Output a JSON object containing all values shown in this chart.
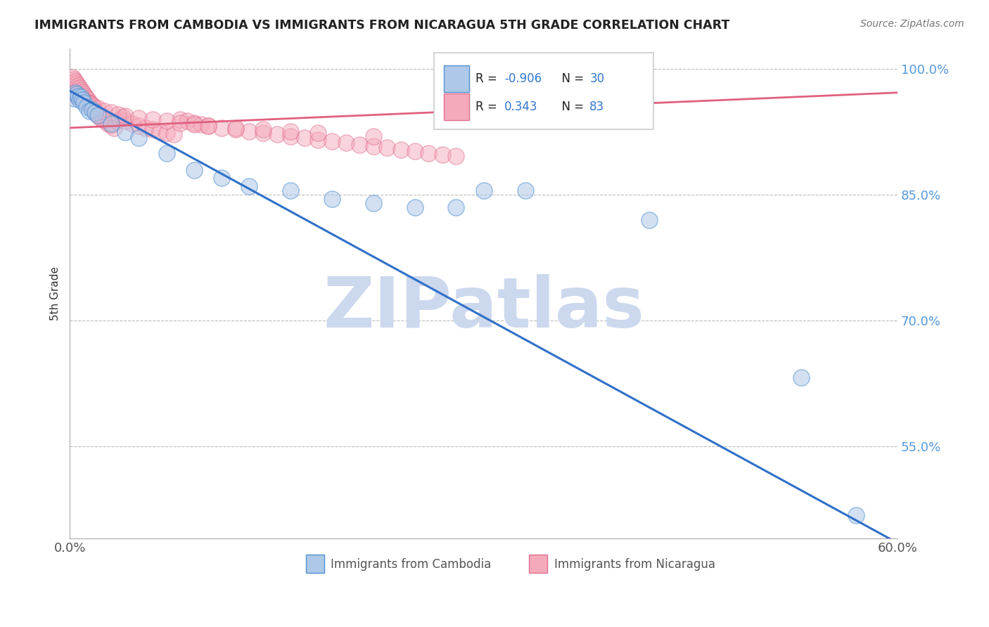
{
  "title": "IMMIGRANTS FROM CAMBODIA VS IMMIGRANTS FROM NICARAGUA 5TH GRADE CORRELATION CHART",
  "source_text": "Source: ZipAtlas.com",
  "ylabel": "5th Grade",
  "xlim": [
    0.0,
    0.6
  ],
  "ylim": [
    0.44,
    1.025
  ],
  "xtick_positions": [
    0.0,
    0.6
  ],
  "xtick_labels": [
    "0.0%",
    "60.0%"
  ],
  "ytick_positions": [
    0.55,
    0.7,
    0.85,
    1.0
  ],
  "ytick_labels": [
    "55.0%",
    "70.0%",
    "85.0%",
    "100.0%"
  ],
  "R_cambodia": -0.906,
  "N_cambodia": 30,
  "R_nicaragua": 0.343,
  "N_nicaragua": 83,
  "cambodia_fill_color": "#aec8e8",
  "nicaragua_fill_color": "#f5aabb",
  "cambodia_edge_color": "#5090d0",
  "nicaragua_edge_color": "#e07090",
  "cambodia_line_color": "#3070c8",
  "nicaragua_line_color": "#e06080",
  "watermark": "ZIPatlas",
  "watermark_color": "#ccd8ee",
  "background_color": "#ffffff",
  "cam_line_x0": 0.0,
  "cam_line_y0": 0.974,
  "cam_line_x1": 0.6,
  "cam_line_y1": 0.435,
  "nic_line_x0": 0.0,
  "nic_line_y0": 0.93,
  "nic_line_x1": 0.6,
  "nic_line_y1": 0.972,
  "cambodia_x": [
    0.003,
    0.004,
    0.005,
    0.006,
    0.007,
    0.008,
    0.009,
    0.01,
    0.012,
    0.014,
    0.016,
    0.018,
    0.02,
    0.03,
    0.04,
    0.05,
    0.07,
    0.09,
    0.11,
    0.13,
    0.16,
    0.19,
    0.22,
    0.25,
    0.28,
    0.3,
    0.33,
    0.42,
    0.53,
    0.57
  ],
  "cambodia_y": [
    0.965,
    0.972,
    0.97,
    0.968,
    0.963,
    0.967,
    0.963,
    0.96,
    0.955,
    0.95,
    0.952,
    0.948,
    0.945,
    0.935,
    0.925,
    0.918,
    0.9,
    0.88,
    0.87,
    0.86,
    0.855,
    0.845,
    0.84,
    0.835,
    0.835,
    0.855,
    0.855,
    0.82,
    0.632,
    0.468
  ],
  "nicaragua_x": [
    0.002,
    0.003,
    0.004,
    0.005,
    0.006,
    0.007,
    0.008,
    0.009,
    0.01,
    0.011,
    0.012,
    0.013,
    0.014,
    0.015,
    0.016,
    0.017,
    0.018,
    0.019,
    0.02,
    0.022,
    0.024,
    0.026,
    0.028,
    0.03,
    0.032,
    0.034,
    0.036,
    0.038,
    0.04,
    0.045,
    0.05,
    0.055,
    0.06,
    0.065,
    0.07,
    0.075,
    0.08,
    0.085,
    0.09,
    0.095,
    0.1,
    0.11,
    0.12,
    0.13,
    0.14,
    0.15,
    0.16,
    0.17,
    0.18,
    0.19,
    0.2,
    0.21,
    0.22,
    0.23,
    0.24,
    0.25,
    0.26,
    0.27,
    0.28,
    0.003,
    0.005,
    0.007,
    0.009,
    0.011,
    0.013,
    0.015,
    0.017,
    0.02,
    0.025,
    0.03,
    0.035,
    0.04,
    0.05,
    0.06,
    0.07,
    0.08,
    0.09,
    0.1,
    0.12,
    0.14,
    0.16,
    0.18,
    0.22
  ],
  "nicaragua_y": [
    0.99,
    0.988,
    0.985,
    0.983,
    0.98,
    0.978,
    0.975,
    0.973,
    0.97,
    0.968,
    0.965,
    0.963,
    0.96,
    0.958,
    0.955,
    0.953,
    0.95,
    0.948,
    0.945,
    0.942,
    0.94,
    0.938,
    0.935,
    0.933,
    0.93,
    0.938,
    0.94,
    0.943,
    0.938,
    0.935,
    0.932,
    0.93,
    0.928,
    0.926,
    0.924,
    0.922,
    0.94,
    0.938,
    0.936,
    0.934,
    0.932,
    0.93,
    0.928,
    0.926,
    0.924,
    0.922,
    0.92,
    0.918,
    0.916,
    0.914,
    0.912,
    0.91,
    0.908,
    0.906,
    0.904,
    0.902,
    0.9,
    0.898,
    0.896,
    0.97,
    0.968,
    0.966,
    0.964,
    0.962,
    0.96,
    0.958,
    0.956,
    0.953,
    0.95,
    0.948,
    0.946,
    0.944,
    0.942,
    0.94,
    0.938,
    0.936,
    0.934,
    0.932,
    0.93,
    0.928,
    0.926,
    0.924,
    0.92
  ]
}
